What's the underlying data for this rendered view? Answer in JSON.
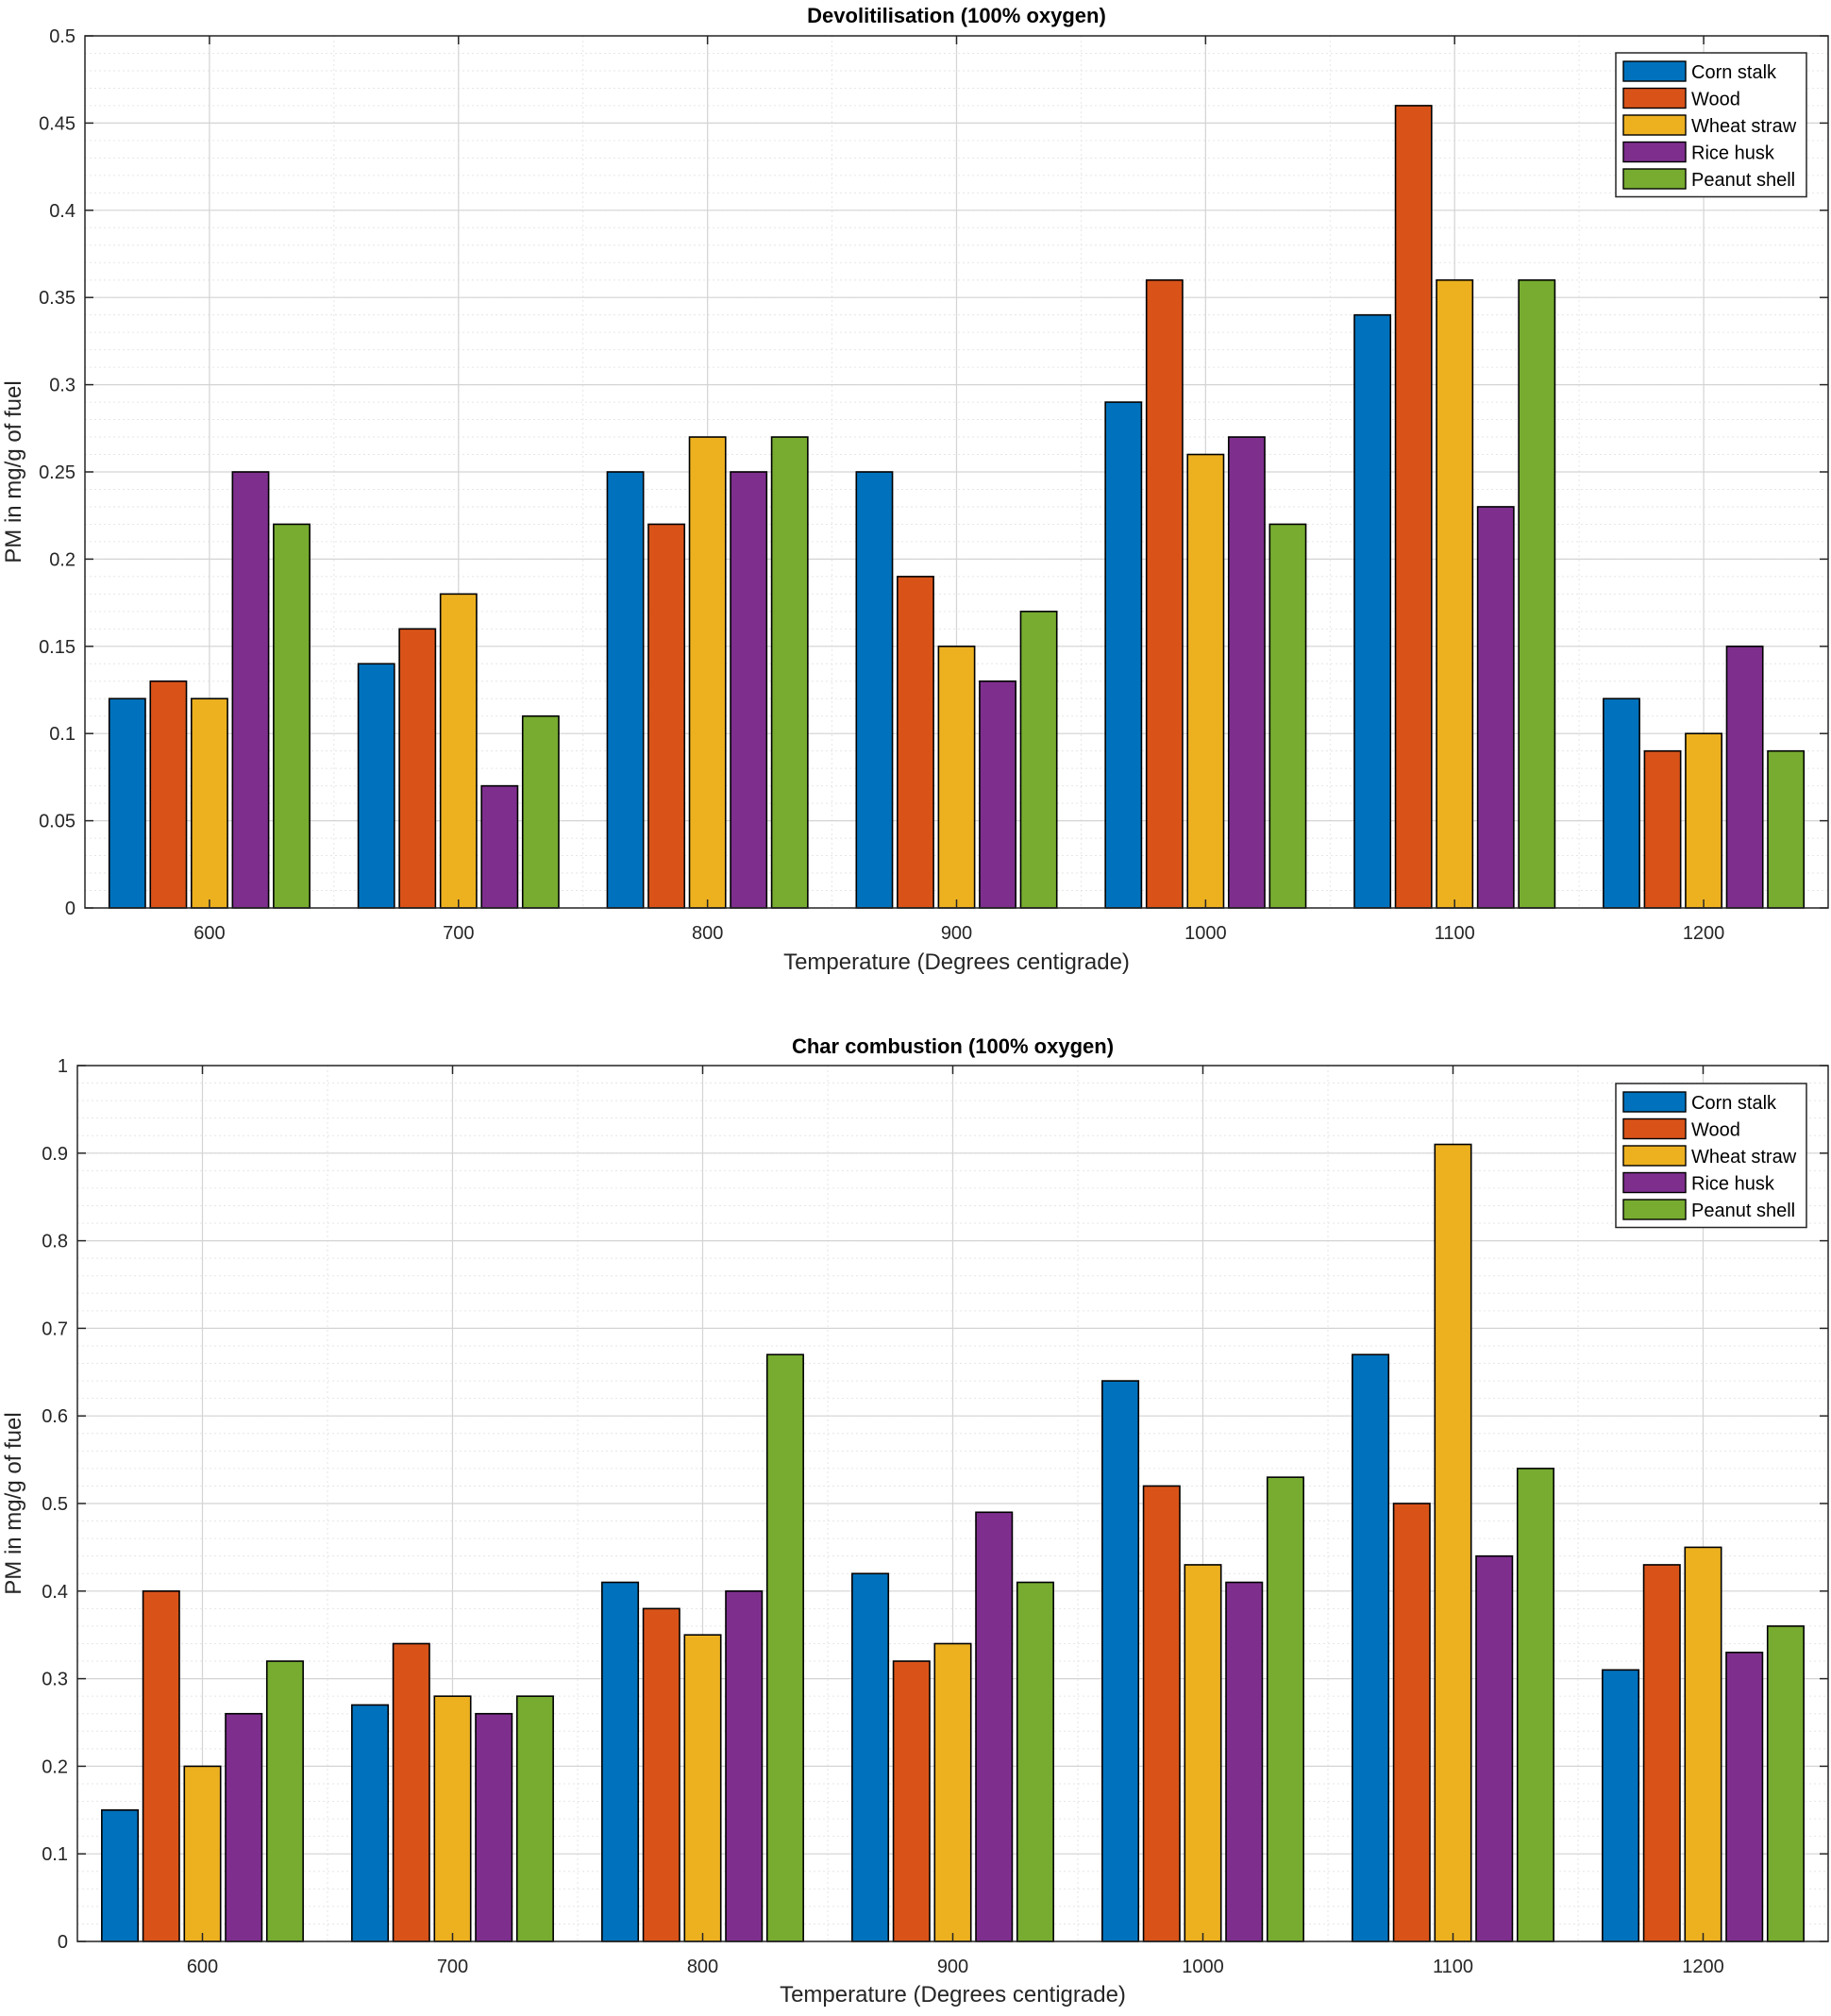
{
  "chart_data": [
    {
      "type": "bar",
      "title": "Devolitilisation (100% oxygen)",
      "xlabel": "Temperature (Degrees centigrade)",
      "ylabel": "PM in mg/g of fuel",
      "categories": [
        "600",
        "700",
        "800",
        "900",
        "1000",
        "1100",
        "1200"
      ],
      "ylim": [
        0,
        0.5
      ],
      "yticks": [
        0,
        0.05,
        0.1,
        0.15,
        0.2,
        0.25,
        0.3,
        0.35,
        0.4,
        0.45,
        0.5
      ],
      "ytick_labels": [
        "0",
        "0.05",
        "0.1",
        "0.15",
        "0.2",
        "0.25",
        "0.3",
        "0.35",
        "0.4",
        "0.45",
        "0.5"
      ],
      "grid": true,
      "legend_position": "top-right",
      "series": [
        {
          "name": "Corn stalk",
          "color": "#0072BD",
          "values": [
            0.12,
            0.14,
            0.25,
            0.25,
            0.29,
            0.34,
            0.12
          ]
        },
        {
          "name": "Wood",
          "color": "#D95319",
          "values": [
            0.13,
            0.16,
            0.22,
            0.19,
            0.36,
            0.46,
            0.09
          ]
        },
        {
          "name": "Wheat straw",
          "color": "#EDB120",
          "values": [
            0.12,
            0.18,
            0.27,
            0.15,
            0.26,
            0.36,
            0.1
          ]
        },
        {
          "name": "Rice husk",
          "color": "#7E2F8E",
          "values": [
            0.25,
            0.07,
            0.25,
            0.13,
            0.27,
            0.23,
            0.15
          ]
        },
        {
          "name": "Peanut shell",
          "color": "#77AC30",
          "values": [
            0.22,
            0.11,
            0.27,
            0.17,
            0.22,
            0.36,
            0.09
          ]
        }
      ]
    },
    {
      "type": "bar",
      "title": "Char combustion (100% oxygen)",
      "xlabel": "Temperature (Degrees centigrade)",
      "ylabel": "PM in mg/g of fuel",
      "categories": [
        "600",
        "700",
        "800",
        "900",
        "1000",
        "1100",
        "1200"
      ],
      "ylim": [
        0,
        1
      ],
      "yticks": [
        0,
        0.1,
        0.2,
        0.3,
        0.4,
        0.5,
        0.6,
        0.7,
        0.8,
        0.9,
        1
      ],
      "ytick_labels": [
        "0",
        "0.1",
        "0.2",
        "0.3",
        "0.4",
        "0.5",
        "0.6",
        "0.7",
        "0.8",
        "0.9",
        "1"
      ],
      "grid": true,
      "legend_position": "top-right",
      "series": [
        {
          "name": "Corn stalk",
          "color": "#0072BD",
          "values": [
            0.15,
            0.27,
            0.41,
            0.42,
            0.64,
            0.67,
            0.31
          ]
        },
        {
          "name": "Wood",
          "color": "#D95319",
          "values": [
            0.4,
            0.34,
            0.38,
            0.32,
            0.52,
            0.5,
            0.43
          ]
        },
        {
          "name": "Wheat straw",
          "color": "#EDB120",
          "values": [
            0.2,
            0.28,
            0.35,
            0.34,
            0.43,
            0.91,
            0.45
          ]
        },
        {
          "name": "Rice husk",
          "color": "#7E2F8E",
          "values": [
            0.26,
            0.26,
            0.4,
            0.49,
            0.41,
            0.44,
            0.33
          ]
        },
        {
          "name": "Peanut shell",
          "color": "#77AC30",
          "values": [
            0.32,
            0.28,
            0.67,
            0.41,
            0.53,
            0.54,
            0.36
          ]
        }
      ]
    }
  ]
}
